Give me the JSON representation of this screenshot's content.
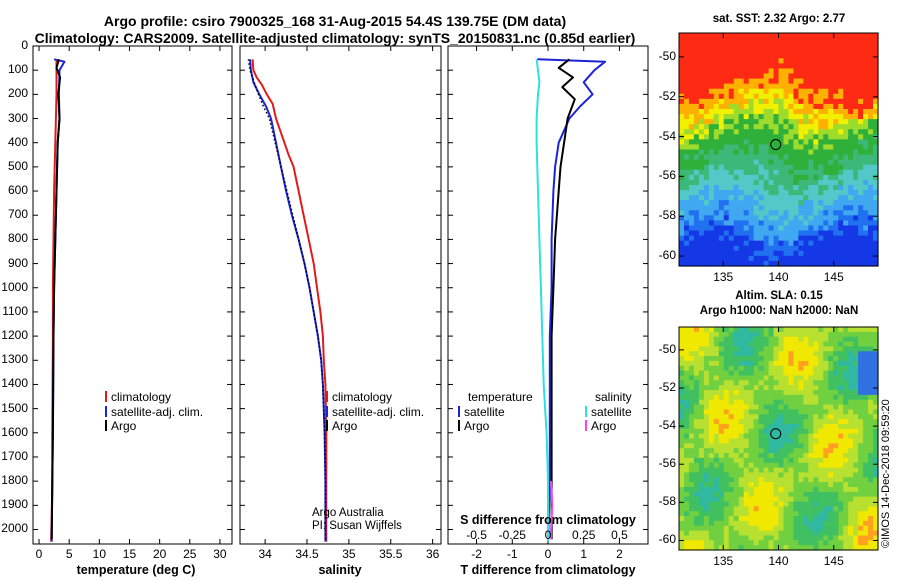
{
  "title_line1": "Argo profile: csiro 7900325_168 31-Aug-2015 54.4S 139.75E (DM data)",
  "title_line2": "Climatology: CARS2009. Satellite-adjusted climatology: synTS_20150831.nc (0.85d earlier)",
  "colors": {
    "climatology": "#e11b1b",
    "satellite": "#1d24d8",
    "argo": "#000000",
    "sat_salinity": "#2ee0e0",
    "argo_salinity": "#ff40ff"
  },
  "chart_data": [
    {
      "type": "line",
      "xlabel": "temperature (deg C)",
      "ylabel": "",
      "xlim": [
        -1,
        32
      ],
      "ylim": [
        2060,
        0
      ],
      "xticks": [
        "0",
        "5",
        "10",
        "15",
        "20",
        "25",
        "30"
      ],
      "yticks": [
        "0",
        "100",
        "200",
        "300",
        "400",
        "500",
        "600",
        "700",
        "800",
        "900",
        "1000",
        "1100",
        "1200",
        "1300",
        "1400",
        "1500",
        "1600",
        "1700",
        "1800",
        "1900",
        "2000"
      ],
      "legend": [
        "climatology",
        "satellite-adj. clim.",
        "Argo"
      ],
      "series": [
        {
          "name": "climatology",
          "x": [
            2.9,
            2.9,
            2.9,
            2.8,
            2.7,
            2.6,
            2.5,
            2.45,
            2.4,
            2.35,
            2.3,
            2.3,
            2.25,
            2.2,
            2.2,
            2.1,
            2.0
          ],
          "y": [
            55,
            100,
            200,
            300,
            400,
            500,
            600,
            700,
            800,
            900,
            1000,
            1200,
            1400,
            1600,
            1800,
            1950,
            2050
          ]
        },
        {
          "name": "satellite-adj. clim.",
          "x": [
            2.5,
            4.2,
            3.4,
            3.3,
            3.4,
            3.1,
            3.0,
            2.9,
            2.8,
            2.7,
            2.6,
            2.5,
            2.4,
            2.35,
            2.3,
            2.2,
            2.1
          ],
          "y": [
            55,
            65,
            100,
            200,
            300,
            400,
            500,
            600,
            700,
            800,
            900,
            1000,
            1200,
            1400,
            1600,
            1800,
            2050
          ]
        },
        {
          "name": "Argo",
          "x": [
            3.3,
            2.9,
            3.5,
            3.2,
            3.4,
            3.1,
            3.0,
            2.9,
            2.8,
            2.7,
            2.6,
            2.5,
            2.4,
            2.35,
            2.3,
            2.2,
            2.1
          ],
          "y": [
            55,
            90,
            130,
            200,
            300,
            400,
            500,
            600,
            700,
            800,
            900,
            1000,
            1200,
            1400,
            1600,
            1800,
            2040
          ]
        }
      ]
    },
    {
      "type": "line",
      "xlabel": "salinity",
      "ylabel": "",
      "xlim": [
        33.7,
        36.1
      ],
      "ylim": [
        2060,
        0
      ],
      "xticks": [
        "34",
        "34.5",
        "35",
        "35.5",
        "36"
      ],
      "legend": [
        "climatology",
        "satellite-adj. clim.",
        "Argo"
      ],
      "series": [
        {
          "name": "climatology",
          "x": [
            33.85,
            33.86,
            33.9,
            33.96,
            34.02,
            34.09,
            34.13,
            34.18,
            34.23,
            34.28,
            34.34,
            34.4,
            34.46,
            34.52,
            34.58,
            34.62,
            34.66,
            34.69,
            34.7,
            34.72,
            34.73,
            34.73
          ],
          "y": [
            55,
            100,
            130,
            160,
            200,
            240,
            300,
            350,
            400,
            450,
            500,
            600,
            700,
            800,
            900,
            1000,
            1100,
            1200,
            1300,
            1400,
            1600,
            2050
          ]
        },
        {
          "name": "satellite-adj. clim.",
          "x": [
            33.82,
            33.83,
            33.86,
            33.93,
            34.01,
            34.07,
            34.13,
            34.19,
            34.25,
            34.32,
            34.4,
            34.47,
            34.53,
            34.58,
            34.63,
            34.67,
            34.69,
            34.71,
            34.72,
            34.72
          ],
          "y": [
            55,
            100,
            150,
            200,
            250,
            300,
            400,
            500,
            600,
            700,
            800,
            900,
            1000,
            1100,
            1200,
            1300,
            1400,
            1600,
            1800,
            2050
          ]
        },
        {
          "name": "Argo",
          "x": [
            33.8,
            33.82,
            33.87,
            33.92,
            33.98,
            34.05,
            34.12,
            34.19,
            34.26,
            34.33,
            34.4,
            34.47,
            34.53,
            34.58,
            34.63,
            34.67,
            34.69,
            34.71,
            34.72,
            34.72
          ],
          "y": [
            55,
            100,
            150,
            200,
            250,
            300,
            400,
            500,
            600,
            700,
            800,
            900,
            1000,
            1100,
            1200,
            1300,
            1400,
            1600,
            1800,
            2040
          ]
        }
      ],
      "annotations": [
        "Argo Australia",
        "PI: Susan Wijffels"
      ]
    },
    {
      "type": "line",
      "xlabel": "T difference from climatology",
      "ylabel": "",
      "xlim": [
        -2.8,
        2.8
      ],
      "ylim": [
        2060,
        0
      ],
      "xticks": [
        "-2",
        "-1",
        "0",
        "1",
        "2"
      ],
      "secondary_xlabel": "S difference from climatology",
      "secondary_xticks": [
        "-0.5",
        "-0.25",
        "0",
        "0.25",
        "0.5"
      ],
      "legend_temperature": [
        "temperature",
        "satellite",
        "Argo"
      ],
      "legend_salinity": [
        "salinity",
        "satellite",
        "Argo"
      ],
      "series": [
        {
          "name": "temperature satellite",
          "x": [
            -0.3,
            1.6,
            1.3,
            1.0,
            1.25,
            0.9,
            0.6,
            0.3,
            0.2,
            0.15,
            0.1,
            0.1,
            0.05,
            0.05,
            0.05,
            0.05,
            0.0
          ],
          "y": [
            55,
            65,
            100,
            150,
            200,
            250,
            300,
            400,
            500,
            600,
            800,
            1000,
            1200,
            1400,
            1600,
            1800,
            2050
          ]
        },
        {
          "name": "temperature Argo",
          "x": [
            0.6,
            0.3,
            0.7,
            0.4,
            0.75,
            0.65,
            0.55,
            0.45,
            0.35,
            0.3,
            0.25,
            0.2,
            0.15,
            0.1,
            0.1,
            0.1,
            0.1
          ],
          "y": [
            55,
            90,
            130,
            170,
            220,
            260,
            300,
            400,
            500,
            600,
            700,
            800,
            1000,
            1200,
            1400,
            1600,
            2040
          ]
        },
        {
          "name": "salinity satellite",
          "x": [
            -0.08,
            -0.07,
            -0.06,
            -0.07,
            -0.08,
            -0.08,
            -0.07,
            -0.06,
            -0.05,
            -0.04,
            -0.03,
            -0.02,
            -0.01,
            0.0,
            0.0,
            0.0
          ],
          "y": [
            55,
            100,
            150,
            200,
            300,
            400,
            600,
            800,
            1000,
            1200,
            1400,
            1500,
            1600,
            1800,
            1950,
            2050
          ]
        },
        {
          "name": "salinity Argo",
          "x": [
            0.02,
            0.03,
            0.02,
            0.02
          ],
          "y": [
            1800,
            1900,
            2000,
            2040
          ]
        }
      ]
    },
    {
      "type": "heatmap",
      "title": "sat. SST: 2.32 Argo: 2.77",
      "xticks": [
        "135",
        "140",
        "145"
      ],
      "yticks": [
        "-50",
        "-52",
        "-54",
        "-56",
        "-58",
        "-60"
      ],
      "xlim": [
        131,
        149
      ],
      "ylim": [
        -60.5,
        -48.8
      ],
      "marker": {
        "lon": 139.75,
        "lat": -54.4
      }
    },
    {
      "type": "heatmap",
      "title": "Altim. SLA: 0.15",
      "subtitle": "Argo h1000: NaN h2000: NaN",
      "xticks": [
        "135",
        "140",
        "145"
      ],
      "yticks": [
        "-50",
        "-52",
        "-54",
        "-56",
        "-58",
        "-60"
      ],
      "xlim": [
        131,
        149
      ],
      "ylim": [
        -60.5,
        -48.8
      ],
      "marker": {
        "lon": 139.75,
        "lat": -54.4
      }
    }
  ],
  "credit": "©IMOS 14-Dec-2018 09:59:20"
}
